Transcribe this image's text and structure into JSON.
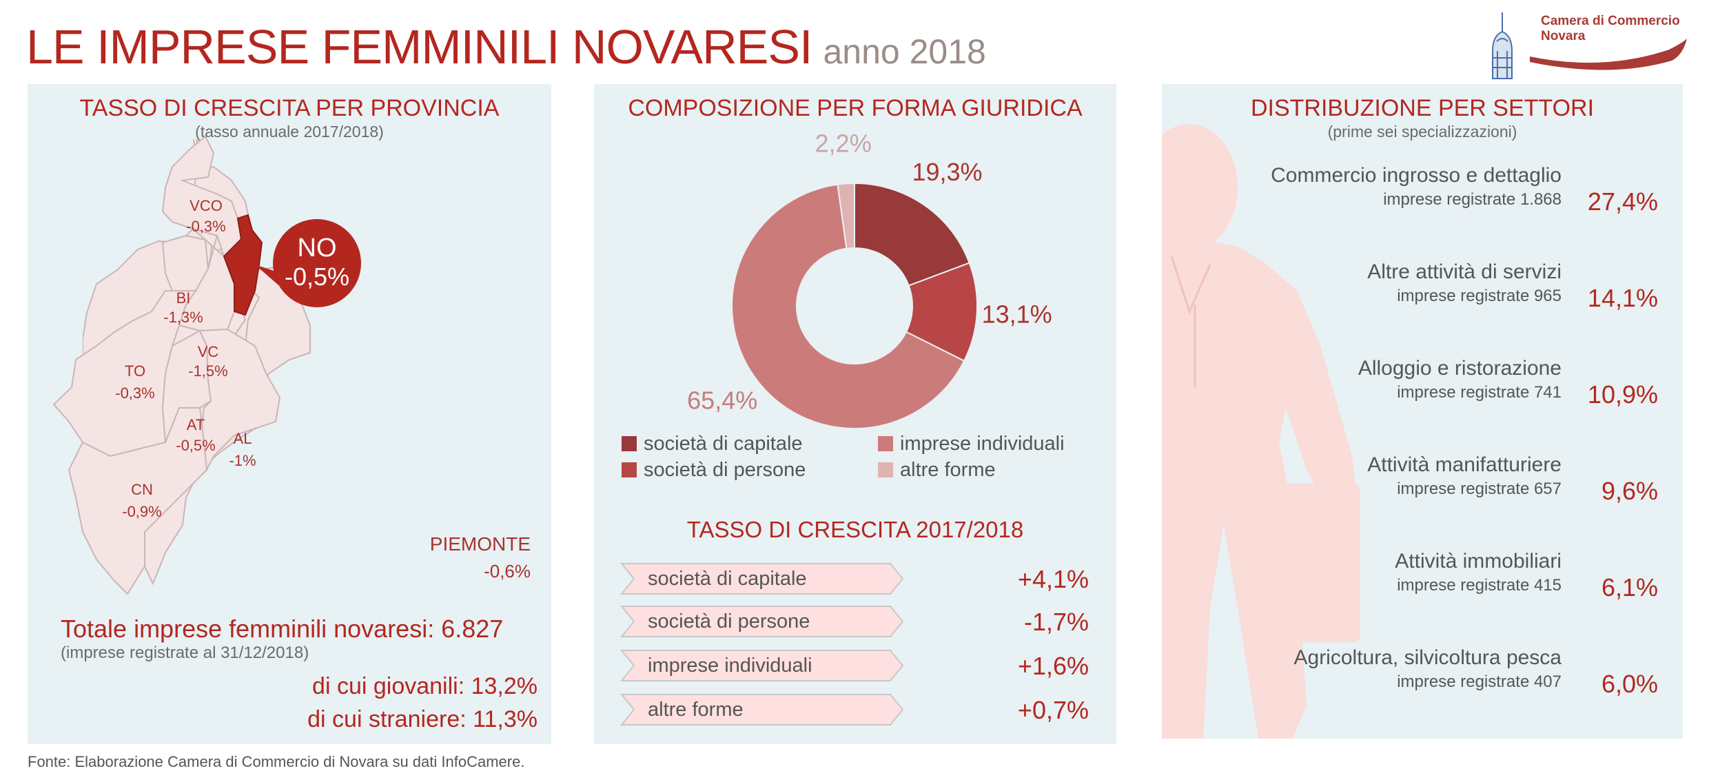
{
  "header": {
    "title": "LE IMPRESE FEMMINILI NOVARESI",
    "subtitle": "anno 2018",
    "logo_line1": "Camera di Commercio",
    "logo_line2": "Novara"
  },
  "colors": {
    "accent": "#b3271f",
    "panel_bg": "#e8f1f4",
    "capitale": "#98393a",
    "persone": "#b84646",
    "individuali": "#cc7b7b",
    "altre": "#e0b2b2",
    "region_fill": "#f5e4e4",
    "novara_fill": "#b3271f",
    "silhouette": "#fadcd8",
    "arrow_fill": "#fde0df"
  },
  "map_panel": {
    "title": "TASSO DI CRESCITA PER PROVINCIA",
    "subtitle": "(tasso annuale 2017/2018)",
    "provinces": [
      {
        "code": "VCO",
        "value": "-0,3%"
      },
      {
        "code": "BI",
        "value": "-1,3%"
      },
      {
        "code": "VC",
        "value": "-1,5%"
      },
      {
        "code": "TO",
        "value": "-0,3%"
      },
      {
        "code": "AT",
        "value": "-0,5%"
      },
      {
        "code": "AL",
        "value": "-1%"
      },
      {
        "code": "CN",
        "value": "-0,9%"
      }
    ],
    "highlight": {
      "code": "NO",
      "value": "-0,5%"
    },
    "region": {
      "name": "PIEMONTE",
      "value": "-0,6%"
    },
    "total_label": "Totale imprese femminili novaresi: 6.827",
    "total_note": "(imprese registrate al 31/12/2018)",
    "young": "di cui giovanili: 13,2%",
    "foreign": "di cui straniere: 11,3%"
  },
  "legal_panel": {
    "title": "COMPOSIZIONE PER FORMA GIURIDICA",
    "legend": [
      {
        "label": "società di capitale"
      },
      {
        "label": "società di persone"
      },
      {
        "label": "imprese individuali"
      },
      {
        "label": "altre forme"
      }
    ],
    "growth_title": "TASSO DI CRESCITA 2017/2018",
    "growth": [
      {
        "label": "società di capitale",
        "value": "+4,1%"
      },
      {
        "label": "società di persone",
        "value": "-1,7%"
      },
      {
        "label": "imprese individuali",
        "value": "+1,6%"
      },
      {
        "label": "altre forme",
        "value": "+0,7%"
      }
    ]
  },
  "chart_data": {
    "type": "pie",
    "variant": "donut",
    "categories": [
      "società di capitale",
      "società di persone",
      "imprese individuali",
      "altre forme"
    ],
    "values": [
      19.3,
      13.1,
      65.4,
      2.2
    ],
    "labels": [
      "19,3%",
      "13,1%",
      "65,4%",
      "2,2%"
    ],
    "unit": "%"
  },
  "sectors_panel": {
    "title": "DISTRIBUZIONE PER SETTORI",
    "subtitle": "(prime sei specializzazioni)",
    "sectors": [
      {
        "name": "Commercio ingrosso e dettaglio",
        "registered": "imprese registrate 1.868",
        "pct": "27,4%"
      },
      {
        "name": "Altre attività di servizi",
        "registered": "imprese registrate 965",
        "pct": "14,1%"
      },
      {
        "name": "Alloggio e ristorazione",
        "registered": "imprese registrate 741",
        "pct": "10,9%"
      },
      {
        "name": "Attività manifatturiere",
        "registered": "imprese registrate 657",
        "pct": "9,6%"
      },
      {
        "name": "Attività immobiliari",
        "registered": "imprese registrate 415",
        "pct": "6,1%"
      },
      {
        "name": "Agricoltura, silvicoltura pesca",
        "registered": "imprese registrate 407",
        "pct": "6,0%"
      }
    ]
  },
  "footer": {
    "source": "Fonte: Elaborazione Camera di Commercio di Novara su dati InfoCamere."
  }
}
